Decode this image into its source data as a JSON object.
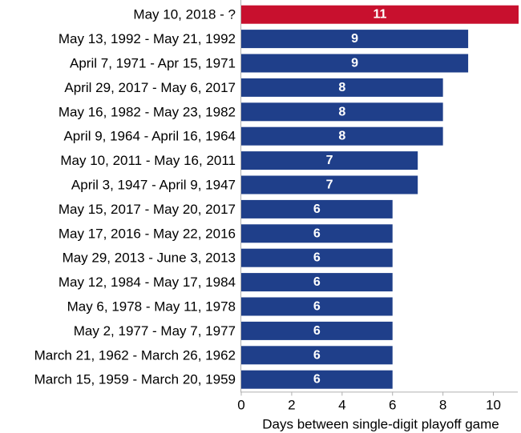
{
  "chart_data": {
    "type": "bar",
    "orientation": "horizontal",
    "categories": [
      "May 10, 2018 - ?",
      "May 13, 1992 - May 21, 1992",
      "April 7, 1971 - Apr 15, 1971",
      "April 29, 2017 - May 6, 2017",
      "May 16, 1982 - May 23, 1982",
      "April 9, 1964 - April 16, 1964",
      "May 10, 2011 - May 16, 2011",
      "April 3, 1947 - April 9, 1947",
      "May 15, 2017 - May 20, 2017",
      "May 17, 2016 - May 22, 2016",
      "May 29, 2013 - June 3, 2013",
      "May 12, 1984 - May 17, 1984",
      "May 6, 1978 - May 11, 1978",
      "May 2, 1977 - May 7, 1977",
      "March 21, 1962 - March 26, 1962",
      "March 15, 1959 - March 20, 1959"
    ],
    "values": [
      11,
      9,
      9,
      8,
      8,
      8,
      7,
      7,
      6,
      6,
      6,
      6,
      6,
      6,
      6,
      6
    ],
    "value_labels": [
      "11",
      "9",
      "9",
      "8",
      "8",
      "8",
      "7",
      "7",
      "6",
      "6",
      "6",
      "6",
      "6",
      "6",
      "6",
      "6"
    ],
    "highlight_index": 0,
    "colors": {
      "highlight": "#c8102e",
      "default": "#1f3f8a"
    },
    "xlabel": "Days between single-digit playoff game",
    "xlim": [
      0,
      11
    ],
    "xticks": [
      0,
      2,
      4,
      6,
      8,
      10
    ],
    "xtick_labels": [
      "0",
      "2",
      "4",
      "6",
      "8",
      "10"
    ],
    "grid": false,
    "legend": "none"
  }
}
